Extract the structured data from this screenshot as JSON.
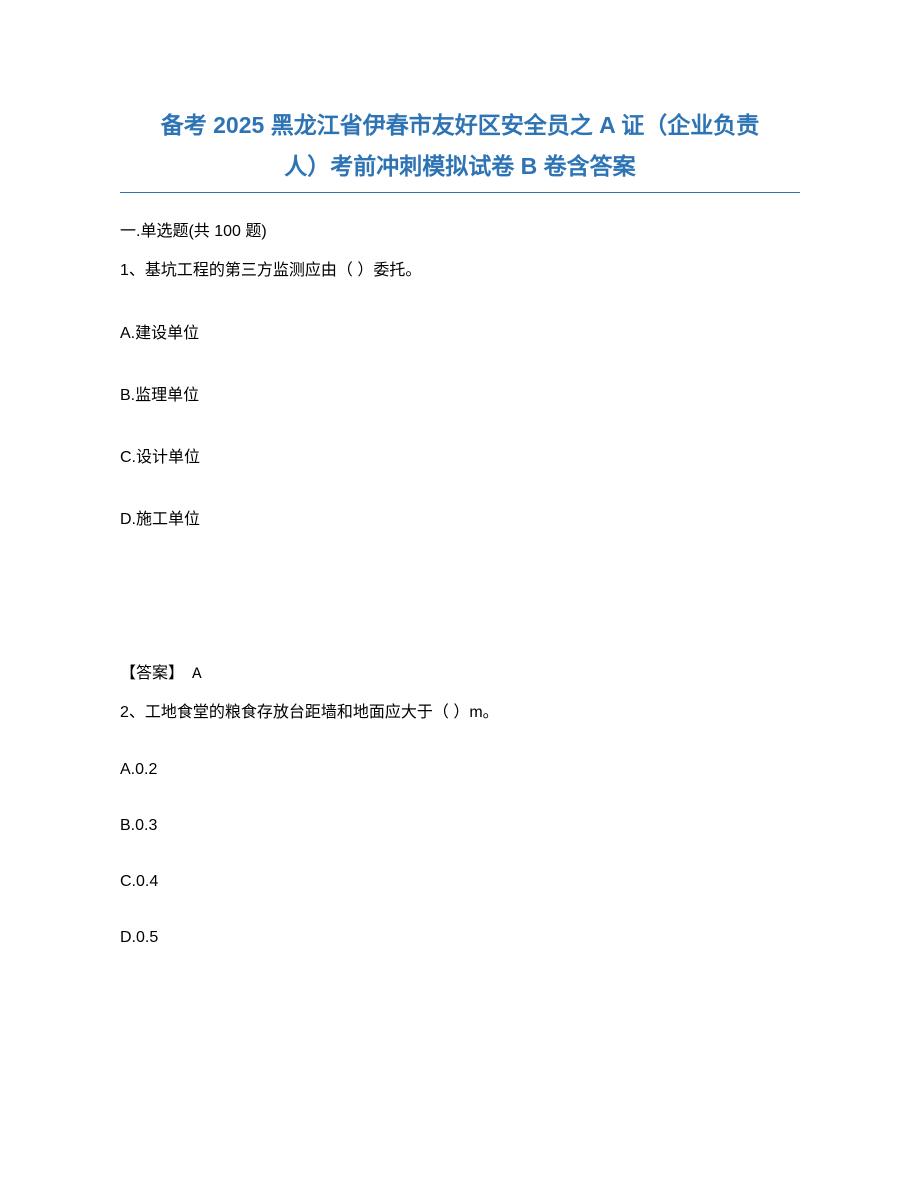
{
  "title_line1": "备考 2025 黑龙江省伊春市友好区安全员之 A 证（企业负责",
  "title_line2": "人）考前冲刺模拟试卷 B 卷含答案",
  "section_header": "一.单选题(共 100 题)",
  "questions": [
    {
      "stem": "1、基坑工程的第三方监测应由（ ）委托。",
      "options": [
        "A.建设单位",
        "B.监理单位",
        "C.设计单位",
        "D.施工单位"
      ],
      "answer_label": "【答案】",
      "answer_value": "A"
    },
    {
      "stem": "2、工地食堂的粮食存放台距墙和地面应大于（ ）m。",
      "options": [
        "A.0.2",
        "B.0.3",
        "C.0.4",
        "D.0.5"
      ]
    }
  ],
  "colors": {
    "title_color": "#2e74b5",
    "text_color": "#000000",
    "background": "#ffffff"
  },
  "typography": {
    "title_fontsize": 23,
    "body_fontsize": 16,
    "title_weight": "bold"
  }
}
